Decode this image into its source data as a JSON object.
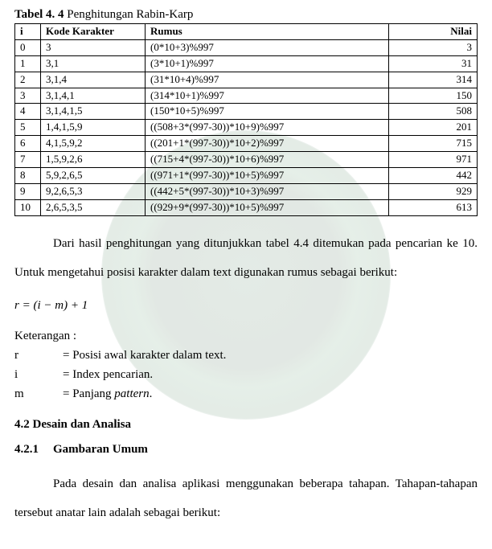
{
  "caption": {
    "label_bold": "Tabel 4. 4",
    "label_rest": " Penghitungan Rabin-Karp"
  },
  "table": {
    "columns": [
      "i",
      "Kode Karakter",
      "Rumus",
      "Nilai"
    ],
    "rows": [
      [
        "0",
        "3",
        "(0*10+3)%997",
        "3"
      ],
      [
        "1",
        "3,1",
        "(3*10+1)%997",
        "31"
      ],
      [
        "2",
        "3,1,4",
        "(31*10+4)%997",
        "314"
      ],
      [
        "3",
        "3,1,4,1",
        "(314*10+1)%997",
        "150"
      ],
      [
        "4",
        "3,1,4,1,5",
        "(150*10+5)%997",
        "508"
      ],
      [
        "5",
        "1,4,1,5,9",
        "((508+3*(997-30))*10+9)%997",
        "201"
      ],
      [
        "6",
        "4,1,5,9,2",
        "((201+1*(997-30))*10+2)%997",
        "715"
      ],
      [
        "7",
        "1,5,9,2,6",
        "((715+4*(997-30))*10+6)%997",
        "971"
      ],
      [
        "8",
        "5,9,2,6,5",
        "((971+1*(997-30))*10+5)%997",
        "442"
      ],
      [
        "9",
        "9,2,6,5,3",
        "((442+5*(997-30))*10+3)%997",
        "929"
      ],
      [
        "10",
        "2,6,5,3,5",
        "((929+9*(997-30))*10+5)%997",
        "613"
      ]
    ]
  },
  "para1": "Dari hasil penghitungan yang ditunjukkan tabel 4.4 ditemukan pada pencarian ke 10. Untuk mengetahui posisi karakter dalam text digunakan rumus sebagai berikut:",
  "formula": "r = (i − m) + 1",
  "keterangan": {
    "title": "Keterangan :",
    "items": [
      {
        "sym": "r",
        "desc": "= Posisi awal karakter dalam text."
      },
      {
        "sym": "i",
        "desc": "= Index pencarian."
      },
      {
        "sym": "m",
        "desc_prefix": "= Panjang ",
        "desc_italic": "pattern",
        "desc_suffix": "."
      }
    ]
  },
  "section42": "4.2 Desain dan Analisa",
  "section421_num": "4.2.1",
  "section421_title": "Gambaran Umum",
  "para2": "Pada desain dan analisa aplikasi menggunakan beberapa tahapan. Tahapan-tahapan tersebut anatar lain adalah sebagai berikut:"
}
